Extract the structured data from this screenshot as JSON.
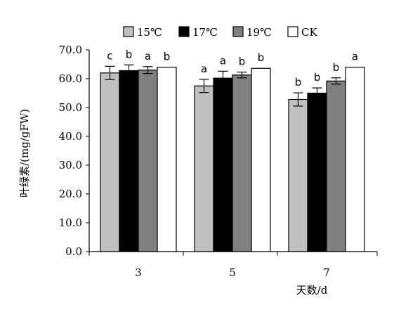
{
  "chart_data": {
    "type": "bar",
    "categories": [
      "3",
      "5",
      "7"
    ],
    "xlabel": "天数/d",
    "ylabel": "叶绿素/(mg/gFW)",
    "ylim": [
      0,
      70
    ],
    "yticks": [
      "0.0",
      "10.0",
      "20.0",
      "30.0",
      "40.0",
      "50.0",
      "60.0",
      "70.0"
    ],
    "legend_position": "top",
    "grid": false,
    "series": [
      {
        "name": "15℃",
        "color": "#c0c0c0",
        "values": [
          62.0,
          57.5,
          52.8
        ],
        "errors": [
          2.3,
          2.3,
          2.3
        ],
        "labels": [
          "c",
          "a",
          "b"
        ]
      },
      {
        "name": "17℃",
        "color": "#000000",
        "values": [
          62.8,
          60.2,
          55.0
        ],
        "errors": [
          2.0,
          2.4,
          1.8
        ],
        "labels": [
          "b",
          "a",
          "b"
        ]
      },
      {
        "name": "19℃",
        "color": "#808080",
        "values": [
          63.0,
          61.3,
          59.2
        ],
        "errors": [
          1.2,
          1.0,
          1.1
        ],
        "labels": [
          "a",
          "b",
          "b"
        ]
      },
      {
        "name": "CK",
        "color": "#ffffff",
        "values": [
          64.0,
          63.6,
          64.0
        ],
        "errors": [
          0,
          0,
          0
        ],
        "labels": [
          "b",
          "b",
          "a"
        ]
      }
    ]
  }
}
